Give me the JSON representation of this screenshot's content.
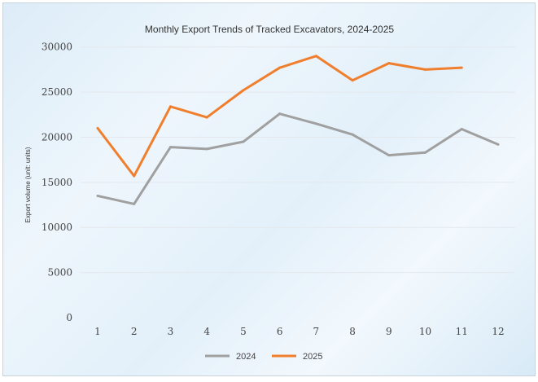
{
  "chart_data": {
    "type": "line",
    "title": "Monthly Export Trends of Tracked Excavators, 2024-2025",
    "xlabel": "",
    "ylabel": "Export volume (unit: units)",
    "x": [
      1,
      2,
      3,
      4,
      5,
      6,
      7,
      8,
      9,
      10,
      11,
      12
    ],
    "ylim": [
      0,
      30000
    ],
    "yticks": [
      0,
      5000,
      10000,
      15000,
      20000,
      25000,
      30000
    ],
    "grid": true,
    "legend": "bottom",
    "series": [
      {
        "name": "2024",
        "color": "#a0a0a0",
        "values": [
          13500,
          12600,
          18900,
          18700,
          19500,
          22600,
          21500,
          20300,
          18000,
          18300,
          20900,
          19200
        ]
      },
      {
        "name": "2025",
        "color": "#f07f2d",
        "values": [
          21000,
          15700,
          23400,
          22200,
          25200,
          27700,
          29000,
          26300,
          28200,
          27500,
          27700,
          null
        ]
      }
    ]
  }
}
